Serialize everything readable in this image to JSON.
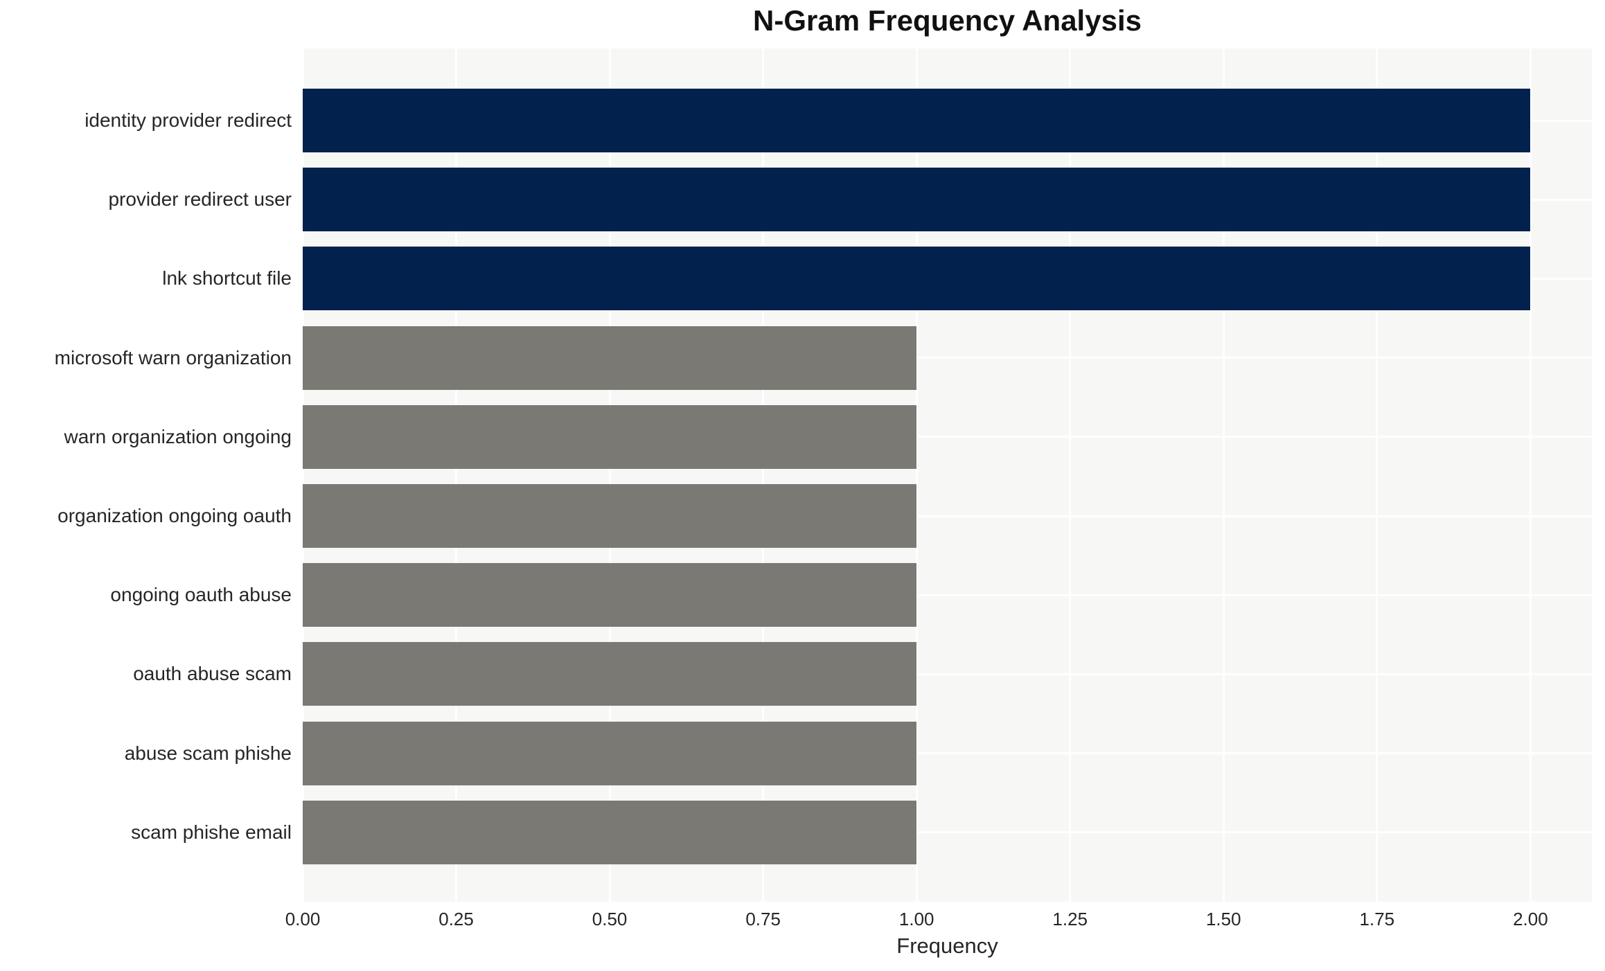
{
  "chart_data": {
    "type": "bar",
    "orientation": "horizontal",
    "title": "N-Gram Frequency Analysis",
    "xlabel": "Frequency",
    "ylabel": "",
    "categories": [
      "identity provider redirect",
      "provider redirect user",
      "lnk shortcut file",
      "microsoft warn organization",
      "warn organization ongoing",
      "organization ongoing oauth",
      "ongoing oauth abuse",
      "oauth abuse scam",
      "abuse scam phishe",
      "scam phishe email"
    ],
    "values": [
      2,
      2,
      2,
      1,
      1,
      1,
      1,
      1,
      1,
      1
    ],
    "bar_colors": [
      "#02214d",
      "#02214d",
      "#02214d",
      "#7a7974",
      "#7a7974",
      "#7a7974",
      "#7a7974",
      "#7a7974",
      "#7a7974",
      "#7a7974"
    ],
    "x_tick_labels": [
      "0.00",
      "0.25",
      "0.50",
      "0.75",
      "1.00",
      "1.25",
      "1.50",
      "1.75",
      "2.00"
    ],
    "x_tick_values": [
      0,
      0.25,
      0.5,
      0.75,
      1.0,
      1.25,
      1.5,
      1.75,
      2.0
    ],
    "xlim": [
      0,
      2.1
    ],
    "grid": true,
    "legend_visible": false,
    "colors": {
      "highlight_bar": "#02214d",
      "muted_bar": "#7a7974",
      "plot_background": "#f7f7f6",
      "gridline": "#ffffff",
      "text": "#262626",
      "title_text": "#111111"
    }
  }
}
